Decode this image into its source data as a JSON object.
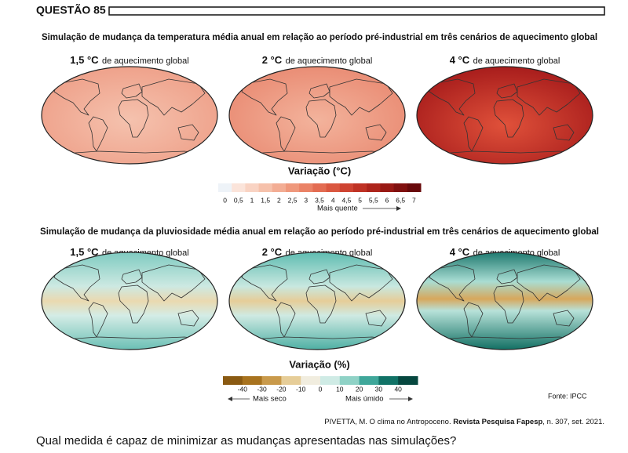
{
  "header": {
    "question": "QUESTÃO 85"
  },
  "temperature": {
    "title": "Simulação de mudança da temperatura média anual em relação ao período pré-industrial em três cenários de aquecimento global",
    "maps": [
      {
        "value": "1,5 °C",
        "label": "de aquecimento global"
      },
      {
        "value": "2 °C",
        "label": "de aquecimento global"
      },
      {
        "value": "4 °C",
        "label": "de aquecimento global"
      }
    ],
    "legend": {
      "title": "Variação (°C)",
      "ticks": [
        "0",
        "0,5",
        "1",
        "1,5",
        "2",
        "2,5",
        "3",
        "3,5",
        "4",
        "4,5",
        "5",
        "5,5",
        "6",
        "6,5",
        "7"
      ],
      "arrow_label": "Mais quente"
    }
  },
  "precipitation": {
    "title": "Simulação de mudança da pluviosidade média anual em relação ao período pré-industrial em três cenários de aquecimento global",
    "maps": [
      {
        "value": "1,5 °C",
        "label": "de aquecimento global"
      },
      {
        "value": "2 °C",
        "label": "de aquecimento global"
      },
      {
        "value": "4 °C",
        "label": "de aquecimento global"
      }
    ],
    "legend": {
      "title": "Variação (%)",
      "ticks": [
        "-40",
        "-30",
        "-20",
        "-10",
        "0",
        "10",
        "20",
        "30",
        "40"
      ],
      "left_label": "Mais seco",
      "right_label": "Mais úmido"
    },
    "source": "Fonte: IPCC"
  },
  "citation": {
    "author": "PIVETTA, M. O clima no Antropoceno. ",
    "journal": "Revista Pesquisa Fapesp",
    "rest": ", n. 307, set. 2021."
  },
  "question": "Qual medida é capaz de minimizar as mudanças apresentadas nas simulações?"
}
